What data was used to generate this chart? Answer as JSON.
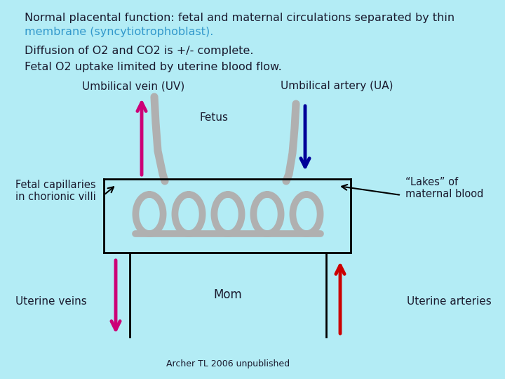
{
  "bg_color": "#b3ecf5",
  "line1a": "Normal placental function: fetal and maternal circulations separated by thin",
  "line1b": "membrane (syncytiotrophoblast).",
  "line1b_color": "#3399cc",
  "line2": "Diffusion of O2 and CO2 is +/- complete.",
  "line3": "Fetal O2 uptake limited by uterine blood flow.",
  "labels": {
    "umbilical_vein": "Umbilical vein (UV)",
    "umbilical_artery": "Umbilical artery (UA)",
    "fetus": "Fetus",
    "fetal_cap": "Fetal capillaries\nin chorionic villi",
    "lakes": "“Lakes” of\nmaternal blood",
    "mom": "Mom",
    "uterine_veins": "Uterine veins",
    "uterine_arteries": "Uterine arteries",
    "footer": "Archer TL 2006 unpublished"
  },
  "arrow_uv_color": "#cc0077",
  "arrow_ua_color": "#000099",
  "arrow_uterine_vein_color": "#cc0077",
  "arrow_uterine_artery_color": "#cc0000",
  "coil_color": "#b0b0b0",
  "text_color": "#1a1a2e",
  "text_fontsize": 11.5,
  "label_fontsize": 11.0
}
